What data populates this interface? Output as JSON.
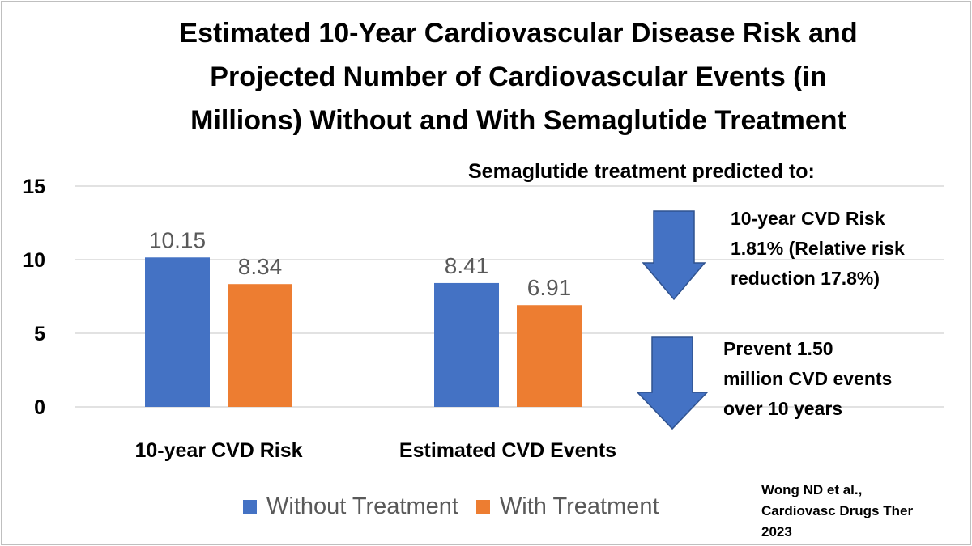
{
  "title_lines": [
    "Estimated 10-Year Cardiovascular Disease Risk and",
    "Projected Number of Cardiovascular Events (in",
    "Millions) Without and With Semaglutide Treatment"
  ],
  "colors": {
    "without": "#4472C4",
    "with": "#ED7D31",
    "arrow": "#4472C4",
    "arrow_stroke": "#2F528F",
    "grid": "#d9d9d9"
  },
  "chart_data": {
    "type": "bar",
    "categories": [
      "10-year CVD Risk",
      "Estimated CVD Events"
    ],
    "series": [
      {
        "name": "Without Treatment",
        "values": [
          10.15,
          8.41
        ],
        "labels": [
          "10.15",
          "8.41"
        ]
      },
      {
        "name": "With Treatment",
        "values": [
          8.34,
          6.91
        ],
        "labels": [
          "8.34",
          "6.91"
        ]
      }
    ],
    "ylim": [
      0,
      15
    ],
    "yticks": [
      0,
      5,
      10,
      15
    ],
    "grid": true,
    "legend_position": "bottom"
  },
  "prediction": {
    "heading": "Semaglutide treatment predicted to:",
    "risk_lines": [
      "10-year CVD Risk",
      "1.81% (Relative risk",
      "reduction 17.8%)"
    ],
    "events_lines": [
      "Prevent 1.50",
      "million CVD events",
      "over 10 years"
    ]
  },
  "citation_lines": [
    "Wong ND et al.,",
    "Cardiovasc Drugs Ther",
    "2023"
  ]
}
